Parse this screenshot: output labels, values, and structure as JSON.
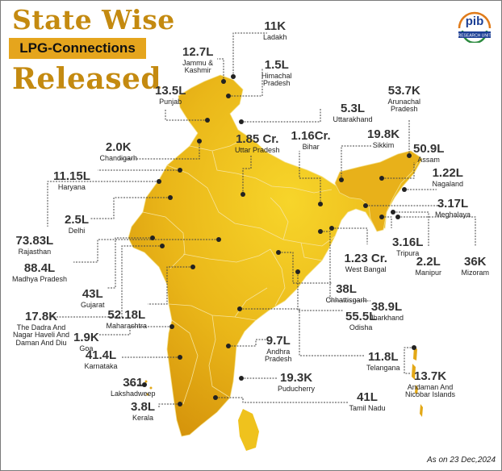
{
  "header": {
    "title_line1": "State Wise",
    "title_line2": "LPG-Connections",
    "title_line3": "Released"
  },
  "logo": {
    "mark": "pib",
    "caption": "RESEARCH UNIT"
  },
  "footer": {
    "as_on": "As on 23 Dec,2024"
  },
  "colors": {
    "title": "#c48a10",
    "badge": "#e5a51d",
    "map_light": "#f6d021",
    "map_dark": "#d99a0c",
    "leader": "#333333"
  },
  "states": [
    {
      "key": "ladakh",
      "value": "11K",
      "name": "Ladakh"
    },
    {
      "key": "jk",
      "value": "12.7L",
      "name": "Jammu &\nKashmir"
    },
    {
      "key": "hp",
      "value": "1.5L",
      "name": "Himachal\nPradesh"
    },
    {
      "key": "punjab",
      "value": "13.5L",
      "name": "Punjab"
    },
    {
      "key": "uttarakhand",
      "value": "5.3L",
      "name": "Uttarakhand"
    },
    {
      "key": "arunachal",
      "value": "53.7K",
      "name": "Arunachal\nPradesh"
    },
    {
      "key": "chandigarh",
      "value": "2.0K",
      "name": "Chandigarh"
    },
    {
      "key": "up",
      "value": "1.85 Cr.",
      "name": "Uttar Pradesh"
    },
    {
      "key": "bihar",
      "value": "1.16Cr.",
      "name": "Bihar"
    },
    {
      "key": "sikkim",
      "value": "19.8K",
      "name": "Sikkim"
    },
    {
      "key": "assam",
      "value": "50.9L",
      "name": "Assam"
    },
    {
      "key": "haryana",
      "value": "11.15L",
      "name": "Haryana"
    },
    {
      "key": "nagaland",
      "value": "1.22L",
      "name": "Nagaland"
    },
    {
      "key": "meghalaya",
      "value": "3.17L",
      "name": "Meghalaya"
    },
    {
      "key": "delhi",
      "value": "2.5L",
      "name": "Delhi"
    },
    {
      "key": "rajasthan",
      "value": "73.83L",
      "name": "Rajasthan"
    },
    {
      "key": "tripura",
      "value": "3.16L",
      "name": "Tripura"
    },
    {
      "key": "wb",
      "value": "1.23 Cr.",
      "name": "West Bangal"
    },
    {
      "key": "manipur",
      "value": "2.2L",
      "name": "Manipur"
    },
    {
      "key": "mizoram",
      "value": "36K",
      "name": "Mizoram"
    },
    {
      "key": "mp",
      "value": "88.4L",
      "name": "Madhya Pradesh"
    },
    {
      "key": "chhattisgarh",
      "value": "38L",
      "name": "Chhattisgarh"
    },
    {
      "key": "jharkhand",
      "value": "38.9L",
      "name": "Jharkhand"
    },
    {
      "key": "gujarat",
      "value": "43L",
      "name": "Gujarat"
    },
    {
      "key": "maharashtra",
      "value": "52.18L",
      "name": "Maharashtra"
    },
    {
      "key": "odisha",
      "value": "55.5L",
      "name": "Odisha"
    },
    {
      "key": "dnh",
      "value": "17.8K",
      "name": "The Dadra And\nNagar Haveli And\nDaman And Diu"
    },
    {
      "key": "goa",
      "value": "1.9K",
      "name": "Goa"
    },
    {
      "key": "ap",
      "value": "9.7L",
      "name": "Andhra\nPradesh"
    },
    {
      "key": "karnataka",
      "value": "41.4L",
      "name": "Karnataka"
    },
    {
      "key": "telangana",
      "value": "11.8L",
      "name": "Telangana"
    },
    {
      "key": "puducherry",
      "value": "19.3K",
      "name": "Puducherry"
    },
    {
      "key": "andaman",
      "value": "13.7K",
      "name": "Andaman And\nNicobar Islands"
    },
    {
      "key": "lakshadweep",
      "value": "361",
      "name": "Lakshadweep"
    },
    {
      "key": "tn",
      "value": "41L",
      "name": "Tamil Nadu"
    },
    {
      "key": "kerala",
      "value": "3.8L",
      "name": "Kerala"
    }
  ]
}
